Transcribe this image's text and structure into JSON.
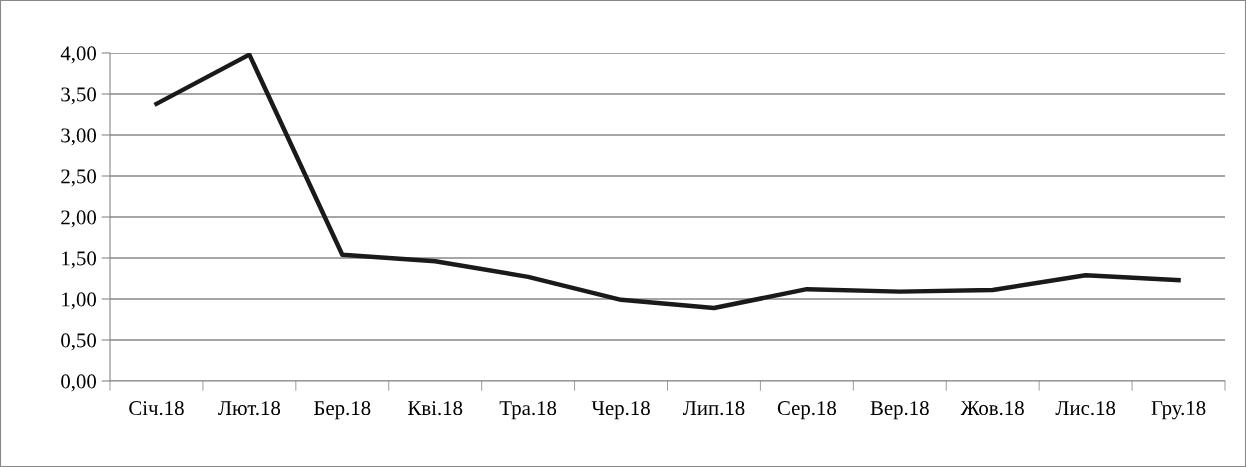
{
  "chart_data": {
    "type": "line",
    "categories": [
      "Січ.18",
      "Лют.18",
      "Бер.18",
      "Кві.18",
      "Тра.18",
      "Чер.18",
      "Лип.18",
      "Сер.18",
      "Вер.18",
      "Жов.18",
      "Лис.18",
      "Гру.18"
    ],
    "series": [
      {
        "color": "#1a1a1a",
        "values": [
          3.38,
          3.98,
          1.54,
          1.46,
          1.27,
          0.99,
          0.89,
          1.12,
          1.09,
          1.11,
          1.29,
          1.23
        ]
      }
    ],
    "ylim": [
      0,
      4
    ],
    "yticks": [
      {
        "value": 0,
        "label": "0,00"
      },
      {
        "value": 0.5,
        "label": "0,50"
      },
      {
        "value": 1,
        "label": "1,00"
      },
      {
        "value": 1.5,
        "label": "1,50"
      },
      {
        "value": 2,
        "label": "2,00"
      },
      {
        "value": 2.5,
        "label": "2,50"
      },
      {
        "value": 3,
        "label": "3,00"
      },
      {
        "value": 3.5,
        "label": "3,50"
      },
      {
        "value": 4,
        "label": "4,00"
      }
    ],
    "grid": "y",
    "marker": "none",
    "line_style": "solid"
  }
}
